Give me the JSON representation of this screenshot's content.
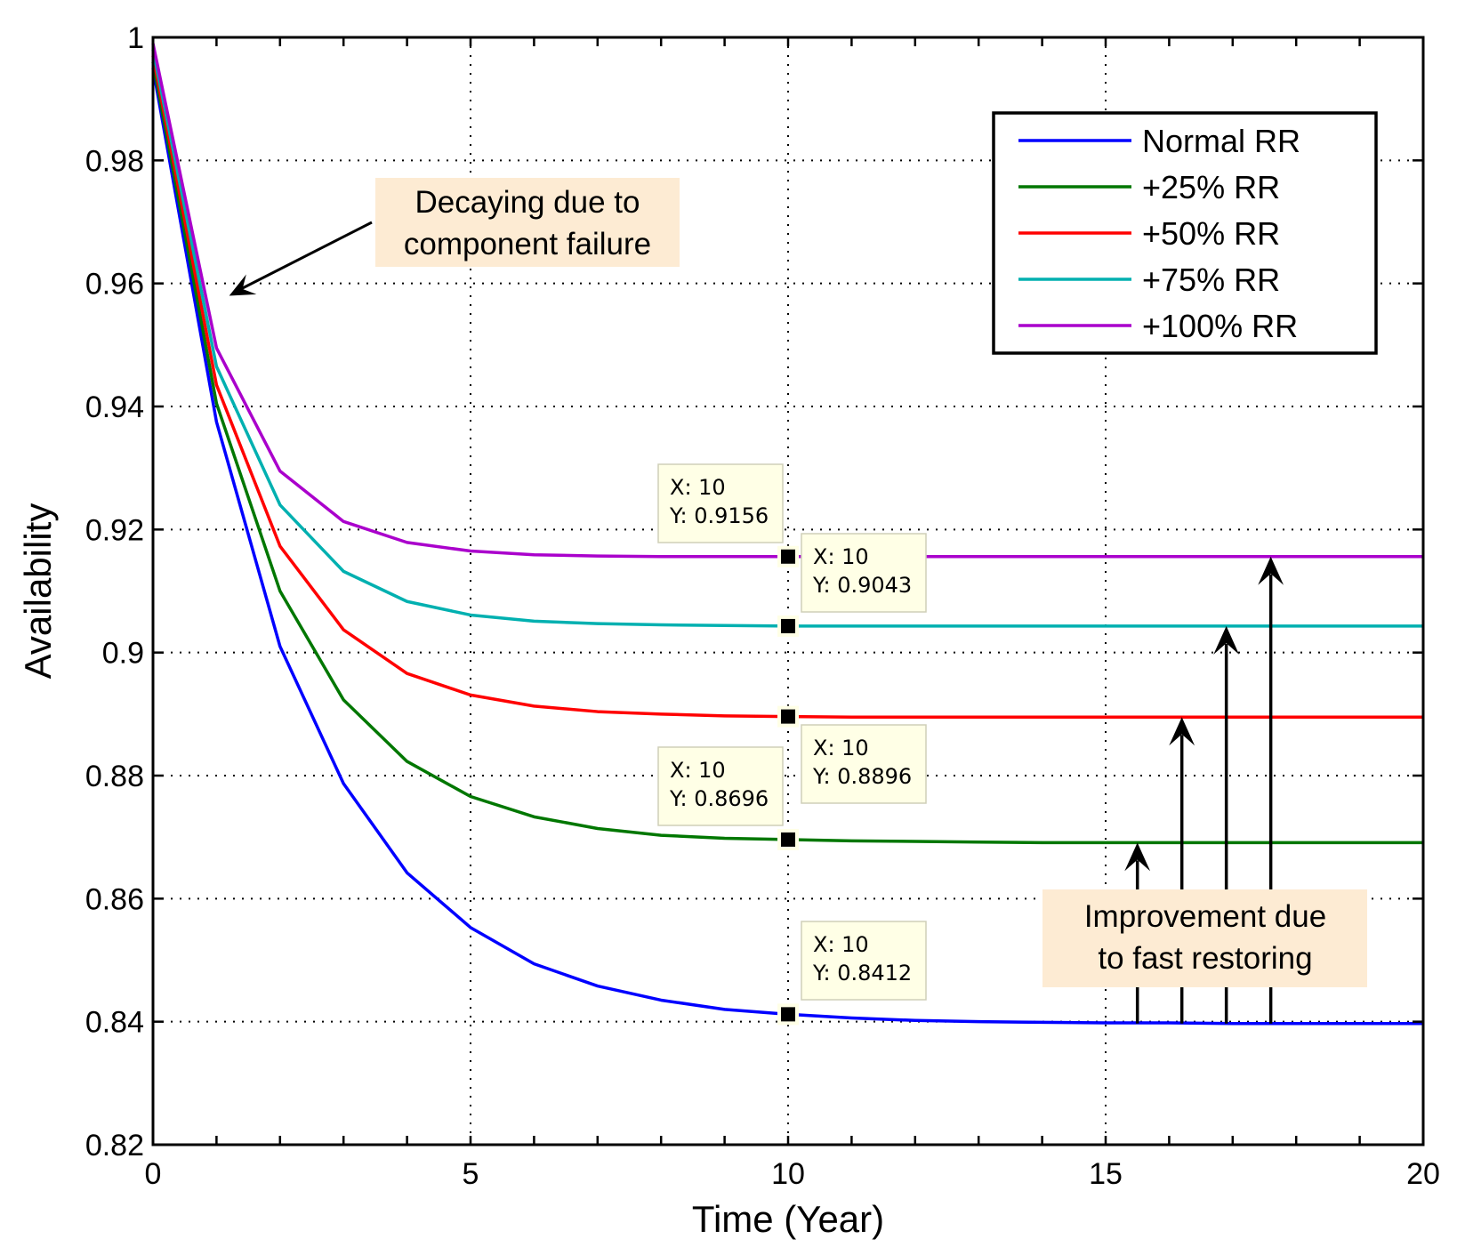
{
  "chart_data": {
    "type": "line",
    "title": "",
    "xlabel": "Time (Year)",
    "ylabel": "Availability",
    "xlim": [
      0,
      20
    ],
    "ylim": [
      0.82,
      1
    ],
    "xticks": [
      0,
      5,
      10,
      15,
      20
    ],
    "xtick_labels": [
      "0",
      "5",
      "10",
      "15",
      "20"
    ],
    "yticks": [
      0.82,
      0.84,
      0.86,
      0.88,
      0.9,
      0.92,
      0.94,
      0.96,
      0.98,
      1
    ],
    "ytick_labels": [
      "0.82",
      "0.84",
      "0.86",
      "0.88",
      "0.9",
      "0.92",
      "0.94",
      "0.96",
      "0.98",
      "1"
    ],
    "grid": true,
    "legend_position": "top-right",
    "x": [
      0,
      1,
      2,
      3,
      4,
      5,
      6,
      7,
      8,
      9,
      10,
      11,
      12,
      13,
      14,
      15,
      16,
      17,
      18,
      19,
      20
    ],
    "series": [
      {
        "name": "Normal RR",
        "color": "#0000ff",
        "values": [
          0.995,
          0.9375,
          0.901,
          0.8787,
          0.8642,
          0.8553,
          0.8494,
          0.8458,
          0.8435,
          0.842,
          0.8412,
          0.8406,
          0.8402,
          0.84,
          0.8399,
          0.8398,
          0.8398,
          0.8397,
          0.8397,
          0.8397,
          0.8397
        ]
      },
      {
        "name": "+25% RR",
        "color": "#007700",
        "values": [
          0.996,
          0.9405,
          0.91,
          0.8923,
          0.8823,
          0.8766,
          0.8733,
          0.8714,
          0.8703,
          0.8698,
          0.8696,
          0.8694,
          0.8693,
          0.8692,
          0.8691,
          0.8691,
          0.8691,
          0.8691,
          0.8691,
          0.8691,
          0.8691
        ]
      },
      {
        "name": "+50% RR",
        "color": "#ff0000",
        "values": [
          0.997,
          0.9435,
          0.9173,
          0.9037,
          0.8966,
          0.8931,
          0.8913,
          0.8904,
          0.89,
          0.8897,
          0.8896,
          0.8895,
          0.8895,
          0.8895,
          0.8895,
          0.8895,
          0.8895,
          0.8895,
          0.8895,
          0.8895,
          0.8895
        ]
      },
      {
        "name": "+75% RR",
        "color": "#00b0b0",
        "values": [
          0.998,
          0.9465,
          0.924,
          0.9132,
          0.9083,
          0.9061,
          0.9051,
          0.9047,
          0.9045,
          0.9044,
          0.9043,
          0.9043,
          0.9043,
          0.9043,
          0.9043,
          0.9043,
          0.9043,
          0.9043,
          0.9043,
          0.9043,
          0.9043
        ]
      },
      {
        "name": "+100% RR",
        "color": "#aa00cc",
        "values": [
          0.999,
          0.9495,
          0.9295,
          0.9213,
          0.9179,
          0.9165,
          0.9159,
          0.9157,
          0.9156,
          0.9156,
          0.9156,
          0.9156,
          0.9156,
          0.9156,
          0.9156,
          0.9156,
          0.9156,
          0.9156,
          0.9156,
          0.9156,
          0.9156
        ]
      }
    ],
    "datatips": [
      {
        "x": 10,
        "y": 0.9156,
        "label_x": "X: 10",
        "label_y": "Y: 0.9156"
      },
      {
        "x": 10,
        "y": 0.9043,
        "label_x": "X: 10",
        "label_y": "Y: 0.9043"
      },
      {
        "x": 10,
        "y": 0.8896,
        "label_x": "X: 10",
        "label_y": "Y: 0.8896"
      },
      {
        "x": 10,
        "y": 0.8696,
        "label_x": "X: 10",
        "label_y": "Y: 0.8696"
      },
      {
        "x": 10,
        "y": 0.8412,
        "label_x": "X: 10",
        "label_y": "Y: 0.8412"
      }
    ],
    "annotations": [
      {
        "lines": [
          "Decaying due to",
          "component failure"
        ],
        "arrow_to": [
          1.2,
          0.958
        ]
      },
      {
        "lines": [
          "Improvement due",
          "to fast restoring"
        ],
        "arrows": [
          {
            "x": 15.5,
            "from": 0.8397,
            "to": 0.8691
          },
          {
            "x": 16.2,
            "from": 0.8397,
            "to": 0.8895
          },
          {
            "x": 16.9,
            "from": 0.8397,
            "to": 0.9043
          },
          {
            "x": 17.6,
            "from": 0.8397,
            "to": 0.9156
          }
        ]
      }
    ]
  }
}
